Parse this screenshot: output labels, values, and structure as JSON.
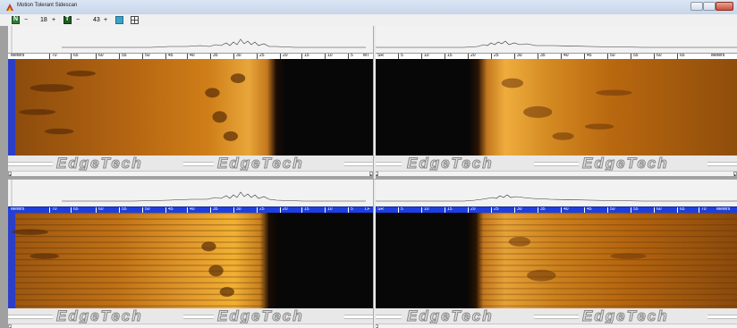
{
  "window": {
    "title": "Motion Tolerant Sidescan"
  },
  "toolbar": {
    "ctrl1_icon": "n-range-icon",
    "ctrl1_minus": "−",
    "ctrl1_value": "18",
    "ctrl1_plus": "+",
    "ctrl2_icon": "t-range-icon",
    "ctrl2_minus": "−",
    "ctrl2_value": "43",
    "ctrl2_plus": "+",
    "btn3_icon": "ts-toggle-icon",
    "btn4_icon": "grid-icon"
  },
  "watermark": {
    "text": "EdgeTech"
  },
  "colors": {
    "active_ruler": "#1e3fe0",
    "sonar_dark": "#070707",
    "sonar_mid": "#b7650f",
    "sonar_bright": "#f2b133"
  },
  "panes": {
    "port_top": {
      "ruler": [
        "Meters",
        "70",
        "65",
        "60",
        "55",
        "50",
        "45",
        "40",
        "35",
        "30",
        "25",
        "20",
        "15",
        "10",
        "5",
        "MT"
      ]
    },
    "stbd_top": {
      "ruler": [
        "SR",
        "5",
        "10",
        "15",
        "20",
        "25",
        "30",
        "35",
        "40",
        "45",
        "50",
        "55",
        "60",
        "65",
        "Meters"
      ]
    },
    "port_bottom": {
      "ruler": [
        "Meters",
        "70",
        "65",
        "60",
        "55",
        "50",
        "45",
        "40",
        "35",
        "30",
        "25",
        "20",
        "15",
        "10",
        "5",
        "LF"
      ]
    },
    "stbd_bottom": {
      "ruler": [
        "SR",
        "5",
        "10",
        "15",
        "20",
        "25",
        "30",
        "35",
        "40",
        "45",
        "50",
        "55",
        "60",
        "65",
        "70",
        "Meters"
      ]
    }
  }
}
